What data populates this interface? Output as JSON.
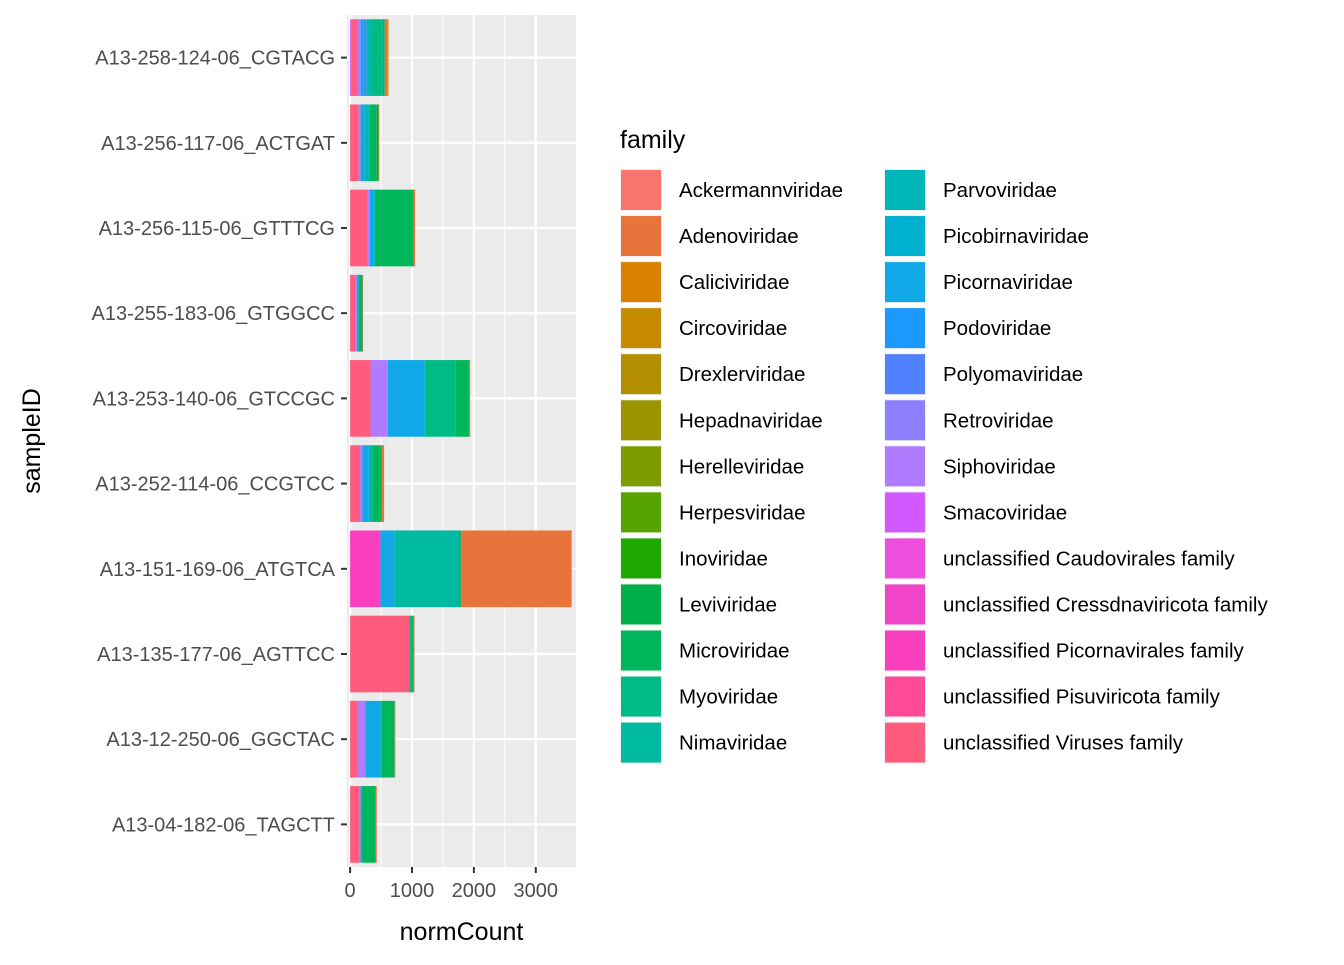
{
  "chart_data": {
    "type": "bar",
    "orientation": "horizontal",
    "stacked": true,
    "xlabel": "normCount",
    "ylabel": "sampleID",
    "xlim": [
      -50,
      3650
    ],
    "xticks": [
      0,
      1000,
      2000,
      3000
    ],
    "x_tick_labels": [
      "0",
      "1000",
      "2000",
      "3000"
    ],
    "grid": true,
    "legend_position": "right",
    "legend_title": "family",
    "categories": [
      "A13-258-124-06_CGTACG",
      "A13-256-117-06_ACTGAT",
      "A13-256-115-06_GTTTCG",
      "A13-255-183-06_GTGGCC",
      "A13-253-140-06_GTCCGC",
      "A13-252-114-06_CCGTCC",
      "A13-151-169-06_ATGTCA",
      "A13-135-177-06_AGTTCC",
      "A13-12-250-06_GGCTAC",
      "A13-04-182-06_TAGCTT"
    ],
    "families": [
      {
        "name": "Ackermannviridae",
        "color": "#F8766D"
      },
      {
        "name": "Adenoviridae",
        "color": "#EA8331"
      },
      {
        "name": "Caliciviridae",
        "color": "#D89000"
      },
      {
        "name": "Circoviridae",
        "color": "#C09B00"
      },
      {
        "name": "Drexlerviridae",
        "color": "#A3A500"
      },
      {
        "name": "Hepadnaviridae",
        "color": "#7CAE00"
      },
      {
        "name": "Herelleviridae",
        "color": "#39B600"
      },
      {
        "name": "Herpesviridae",
        "color": "#00BB4E"
      },
      {
        "name": "Inoviridae",
        "color": "#00BF7D"
      },
      {
        "name": "Leviviridae",
        "color": "#00C1A3"
      },
      {
        "name": "Microviridae",
        "color": "#00BFC4"
      },
      {
        "name": "Myoviridae",
        "color": "#00BAE0"
      },
      {
        "name": "Nimaviridae",
        "color": "#00B0F6"
      },
      {
        "name": "Parvoviridae",
        "color": "#35A2FF"
      },
      {
        "name": "Picobirnaviridae",
        "color": "#9590FF"
      },
      {
        "name": "Picornaviridae",
        "color": "#C77CFF"
      },
      {
        "name": "Podoviridae",
        "color": "#E76BF3"
      },
      {
        "name": "Polyomaviridae",
        "color": "#FA62DB"
      },
      {
        "name": "Retroviridae",
        "color": "#FF62BC"
      },
      {
        "name": "Siphoviridae",
        "color": "#FF6C91"
      },
      {
        "name": "Smacoviridae",
        "color": "#F8766D"
      },
      {
        "name": "unclassified Caudovirales family",
        "color": "#F8766D"
      },
      {
        "name": "unclassified Cressdnaviricota family",
        "color": "#F8766D"
      },
      {
        "name": "unclassified Picornavirales family",
        "color": "#F8766D"
      },
      {
        "name": "unclassified Pisuviricota family",
        "color": "#F8766D"
      },
      {
        "name": "unclassified Viruses family",
        "color": "#F8766D"
      }
    ],
    "legend_colors": [
      "#F8766D",
      "#E8743B",
      "#D98100",
      "#C68A00",
      "#B38F00",
      "#9B9600",
      "#7C9C00",
      "#56A300",
      "#1FA800",
      "#00AF4A",
      "#00B65B",
      "#00BB85",
      "#00BBA1",
      "#00B6B8",
      "#00B0CF",
      "#10A8E6",
      "#1C99FF",
      "#5082FF",
      "#8E7FFF",
      "#B07CFF",
      "#D259FF",
      "#EC4FDD",
      "#F045C8",
      "#FA3FBE",
      "#FF4A97",
      "#FF5B7D"
    ],
    "series_values": {
      "A13-258-124-06_CGTACG": [
        [
          "Smacoviridae",
          20
        ],
        [
          "unclassified Viruses family",
          100
        ],
        [
          "Siphoviridae",
          50
        ],
        [
          "Picornaviridae",
          50
        ],
        [
          "Polyomaviridae",
          40
        ],
        [
          "Parvoviridae",
          70
        ],
        [
          "Myoviridae",
          200
        ],
        [
          "Microviridae",
          30
        ],
        [
          "Adenoviridae",
          40
        ],
        [
          "Caliciviridae",
          20
        ]
      ],
      "A13-256-117-06_ACTGAT": [
        [
          "unclassified Viruses family",
          140
        ],
        [
          "Siphoviridae",
          30
        ],
        [
          "Picornaviridae",
          60
        ],
        [
          "Parvoviridae",
          90
        ],
        [
          "Microviridae",
          110
        ],
        [
          "Leviviridae",
          30
        ],
        [
          "Adenoviridae",
          10
        ]
      ],
      "A13-256-115-06_GTTTCG": [
        [
          "unclassified Viruses family",
          280
        ],
        [
          "Siphoviridae",
          40
        ],
        [
          "Picornaviridae",
          60
        ],
        [
          "Parvoviridae",
          30
        ],
        [
          "Microviridae",
          620
        ],
        [
          "Adenoviridae",
          20
        ]
      ],
      "A13-255-183-06_GTGGCC": [
        [
          "unclassified Viruses family",
          80
        ],
        [
          "Siphoviridae",
          30
        ],
        [
          "Picornaviridae",
          30
        ],
        [
          "Microviridae",
          60
        ],
        [
          "Adenoviridae",
          10
        ]
      ],
      "A13-253-140-06_GTCCGC": [
        [
          "unclassified Viruses family",
          330
        ],
        [
          "Siphoviridae",
          280
        ],
        [
          "Picornaviridae",
          590
        ],
        [
          "Parvoviridae",
          20
        ],
        [
          "Myoviridae",
          480
        ],
        [
          "Microviridae",
          220
        ],
        [
          "Adenoviridae",
          20
        ]
      ],
      "A13-252-114-06_CCGTCC": [
        [
          "unclassified Viruses family",
          160
        ],
        [
          "Siphoviridae",
          40
        ],
        [
          "Picornaviridae",
          100
        ],
        [
          "Parvoviridae",
          60
        ],
        [
          "Microviridae",
          120
        ],
        [
          "Leviviridae",
          30
        ],
        [
          "Adenoviridae",
          40
        ]
      ],
      "A13-151-169-06_ATGTCA": [
        [
          "unclassified Picornavirales family",
          490
        ],
        [
          "Picornaviridae",
          230
        ],
        [
          "Nimaviridae",
          1040
        ],
        [
          "Microviridae",
          30
        ],
        [
          "Adenoviridae",
          1790
        ]
      ],
      "A13-135-177-06_AGTTCC": [
        [
          "unclassified Viruses family",
          960
        ],
        [
          "Myoviridae",
          30
        ],
        [
          "Microviridae",
          40
        ],
        [
          "Adenoviridae",
          10
        ]
      ],
      "A13-12-250-06_GGCTAC": [
        [
          "unclassified Viruses family",
          120
        ],
        [
          "Siphoviridae",
          130
        ],
        [
          "Picornaviridae",
          230
        ],
        [
          "Parvoviridae",
          30
        ],
        [
          "Microviridae",
          210
        ],
        [
          "Adenoviridae",
          10
        ]
      ],
      "A13-04-182-06_TAGCTT": [
        [
          "unclassified Viruses family",
          150
        ],
        [
          "Siphoviridae",
          20
        ],
        [
          "Parvoviridae",
          30
        ],
        [
          "Microviridae",
          210
        ],
        [
          "Adenoviridae",
          20
        ]
      ]
    }
  }
}
